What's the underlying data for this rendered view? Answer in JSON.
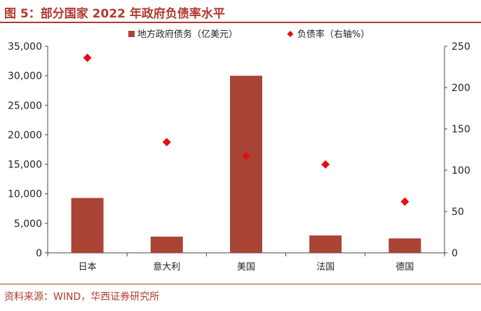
{
  "title": "图 5：部分国家 2022 年政府负债率水平",
  "source": "资料来源：WIND，华西证券研究所",
  "colors": {
    "bar": "#a94436",
    "marker": "#e01010",
    "accent": "#b03a2e"
  },
  "chart_data": {
    "type": "bar",
    "categories": [
      "日本",
      "意大利",
      "美国",
      "法国",
      "德国"
    ],
    "series": [
      {
        "name": "地方政府债务（亿美元）",
        "type": "bar",
        "axis": "left",
        "values": [
          9300,
          2750,
          30000,
          2950,
          2450
        ]
      },
      {
        "name": "负债率（右轴%）",
        "type": "scatter",
        "axis": "right",
        "values": [
          236,
          134,
          117,
          107,
          62
        ]
      }
    ],
    "ylim": [
      0,
      35000
    ],
    "yticks": [
      0,
      5000,
      10000,
      15000,
      20000,
      25000,
      30000,
      35000
    ],
    "ytick_labels": [
      "0",
      "5,000",
      "10,000",
      "15,000",
      "20,000",
      "25,000",
      "30,000",
      "35,000"
    ],
    "y2lim": [
      0,
      250
    ],
    "y2ticks": [
      0,
      50,
      100,
      150,
      200,
      250
    ],
    "y2tick_labels": [
      "0",
      "50",
      "100",
      "150",
      "200",
      "250"
    ],
    "legend": "top-center",
    "grid": false
  }
}
